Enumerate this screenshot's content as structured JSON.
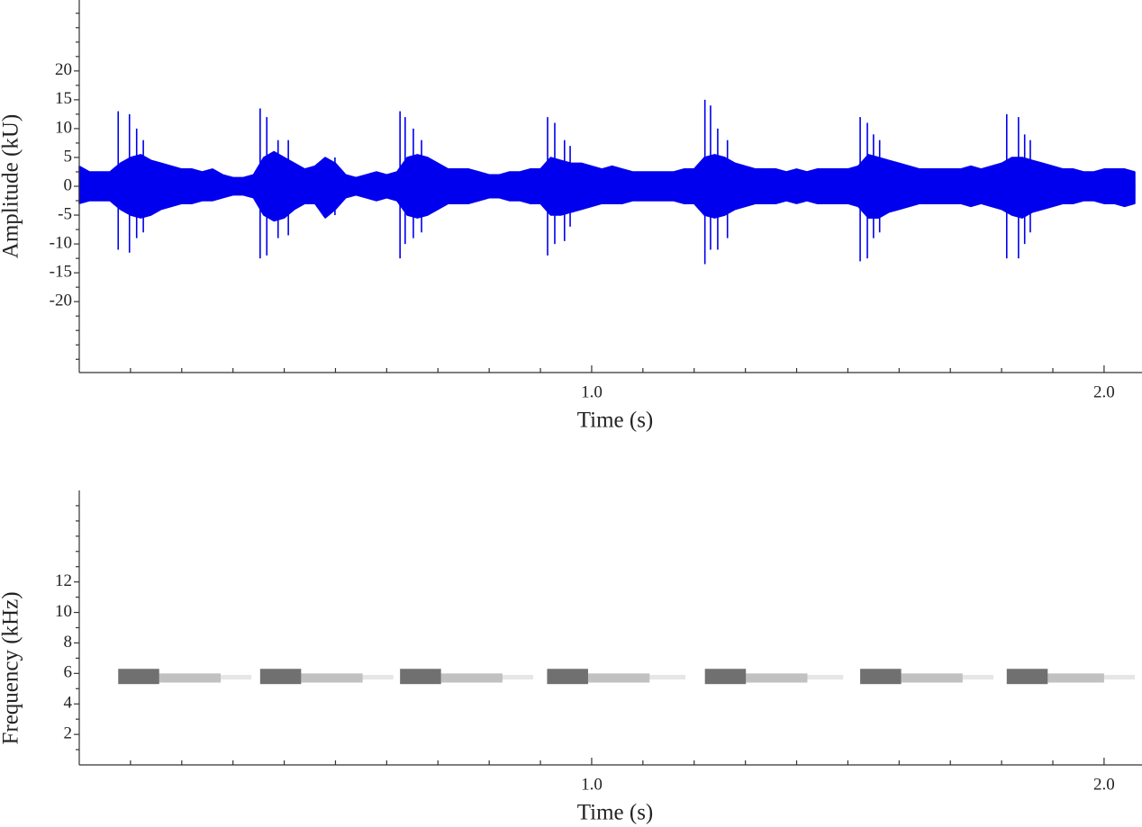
{
  "chart_data": [
    {
      "type": "waveform",
      "ylabel": "Amplitude (kU)",
      "xlabel": "Time (s)",
      "xlim": [
        0,
        2.074
      ],
      "xticks": [
        {
          "value": 1,
          "label": "1.0"
        },
        {
          "value": 2,
          "label": "2.0"
        }
      ],
      "xminor_ticks": [
        0.1,
        0.2,
        0.3,
        0.4,
        0.5,
        0.6,
        0.7,
        0.8,
        0.9,
        1.1,
        1.2,
        1.3,
        1.4,
        1.5,
        1.6,
        1.7,
        1.8,
        1.9
      ],
      "ylim": [
        -32.3,
        32.3
      ],
      "yticks": [
        -20,
        -15,
        -10,
        -5,
        0,
        5,
        10,
        15,
        20
      ],
      "yminor_ticks": [
        -30,
        -27.5,
        -25,
        -22.5,
        -17.5,
        -12.5,
        -7.5,
        -2.5,
        2.5,
        7.5,
        12.5,
        17.5,
        22.5,
        25,
        27.5,
        30
      ],
      "x": [
        0,
        0.02,
        0.04,
        0.06,
        0.08,
        0.1,
        0.12,
        0.14,
        0.16,
        0.18,
        0.2,
        0.22,
        0.24,
        0.26,
        0.28,
        0.3,
        0.32,
        0.34,
        0.36,
        0.38,
        0.4,
        0.42,
        0.44,
        0.46,
        0.48,
        0.5,
        0.52,
        0.54,
        0.56,
        0.58,
        0.6,
        0.62,
        0.64,
        0.66,
        0.68,
        0.7,
        0.72,
        0.74,
        0.76,
        0.78,
        0.8,
        0.82,
        0.84,
        0.86,
        0.88,
        0.9,
        0.92,
        0.94,
        0.96,
        0.98,
        1,
        1.02,
        1.04,
        1.06,
        1.08,
        1.1,
        1.12,
        1.14,
        1.16,
        1.18,
        1.2,
        1.22,
        1.24,
        1.26,
        1.28,
        1.3,
        1.32,
        1.34,
        1.36,
        1.38,
        1.4,
        1.42,
        1.44,
        1.46,
        1.48,
        1.5,
        1.52,
        1.54,
        1.56,
        1.58,
        1.6,
        1.62,
        1.64,
        1.66,
        1.68,
        1.7,
        1.72,
        1.74,
        1.76,
        1.78,
        1.8,
        1.82,
        1.84,
        1.86,
        1.88,
        1.9,
        1.92,
        1.94,
        1.96,
        1.98,
        2,
        2.02,
        2.04,
        2.06
      ],
      "series": [
        {
          "color": "#0000ee",
          "values": [
            3.5,
            2.5,
            2.5,
            2.5,
            4,
            5,
            5.5,
            4.5,
            4,
            3.5,
            3,
            3,
            2.5,
            3,
            2,
            1.5,
            1.5,
            2,
            5,
            6,
            5,
            4,
            3,
            3.5,
            5,
            4,
            2,
            1.5,
            2,
            2.5,
            2,
            2.5,
            5,
            5.5,
            5,
            4,
            3,
            3,
            3,
            2.5,
            2,
            2,
            2.5,
            2.5,
            3,
            3,
            5,
            4.5,
            4,
            4,
            3.5,
            3,
            3.5,
            3,
            2.5,
            2.5,
            2.5,
            2.5,
            2.5,
            3,
            3,
            5,
            5.5,
            5,
            4,
            3.5,
            3,
            3,
            3,
            2.5,
            3,
            2.5,
            3,
            3,
            3,
            3,
            3.5,
            5.5,
            5,
            4.5,
            4,
            3.5,
            3,
            3,
            3,
            3,
            3,
            3.5,
            3,
            3.5,
            4,
            5,
            5,
            4.5,
            4,
            3.5,
            3,
            3,
            2.5,
            2.5,
            3,
            3,
            3,
            2.5
          ]
        },
        {
          "color": "#0000ee",
          "values": [
            -3,
            -2.5,
            -2.5,
            -2.5,
            -4,
            -5,
            -5.5,
            -5,
            -4,
            -3.5,
            -3,
            -3,
            -2.5,
            -2.5,
            -2,
            -1.5,
            -1.5,
            -2,
            -5,
            -6,
            -5.5,
            -4,
            -3,
            -3,
            -5.5,
            -4,
            -2,
            -1.5,
            -2,
            -2.5,
            -2,
            -2.5,
            -5,
            -5.5,
            -5,
            -4,
            -3,
            -3,
            -3,
            -2.5,
            -2,
            -2,
            -2.5,
            -2.5,
            -3,
            -3,
            -5,
            -5,
            -4.5,
            -4,
            -3.5,
            -3,
            -3,
            -3,
            -2.5,
            -2.5,
            -2.5,
            -2.5,
            -2.5,
            -3,
            -3,
            -5,
            -5.5,
            -5,
            -4,
            -3.5,
            -3,
            -3,
            -3,
            -2.5,
            -3,
            -2.5,
            -3,
            -3,
            -3,
            -3,
            -3.5,
            -5.5,
            -5.5,
            -4.5,
            -4,
            -3.5,
            -3,
            -3,
            -3,
            -3,
            -3,
            -3.5,
            -3,
            -3.5,
            -4,
            -5,
            -5.5,
            -4.5,
            -4,
            -3.5,
            -3,
            -3,
            -2.5,
            -2.5,
            -3,
            -3,
            -3.5,
            -3
          ]
        }
      ],
      "spikes": {
        "x": [
          0.076,
          0.098,
          0.112,
          0.125,
          0.353,
          0.366,
          0.388,
          0.408,
          0.499,
          0.626,
          0.636,
          0.652,
          0.668,
          0.914,
          0.928,
          0.947,
          0.958,
          1.221,
          1.232,
          1.246,
          1.265,
          1.524,
          1.538,
          1.55,
          1.562,
          1.81,
          1.833,
          1.845,
          1.856
        ],
        "high": [
          13,
          12.5,
          10,
          8,
          13.5,
          12,
          8,
          8,
          5,
          13,
          12,
          10,
          8,
          12,
          11,
          8,
          7,
          15,
          14,
          10,
          8,
          12,
          11,
          9,
          8,
          12.5,
          12,
          9,
          8
        ],
        "low": [
          -11,
          -11.5,
          -9,
          -8,
          -12.5,
          -12,
          -9,
          -8.5,
          -5,
          -12.5,
          -10,
          -9,
          -8,
          -12,
          -10,
          -9.5,
          -7,
          -13.5,
          -11,
          -11,
          -9,
          -13,
          -12.5,
          -9,
          -8,
          -12.5,
          -12.5,
          -10,
          -8
        ]
      }
    },
    {
      "type": "spectrogram",
      "ylabel": "Frequency (kHz)",
      "xlabel": "Time (s)",
      "xlim": [
        0,
        2.074
      ],
      "xticks": [
        {
          "value": 1,
          "label": "1.0"
        },
        {
          "value": 2,
          "label": "2.0"
        }
      ],
      "xminor_ticks": [
        0.1,
        0.2,
        0.3,
        0.4,
        0.5,
        0.6,
        0.7,
        0.8,
        0.9,
        1.1,
        1.2,
        1.3,
        1.4,
        1.5,
        1.6,
        1.7,
        1.8,
        1.9
      ],
      "ylim": [
        0,
        18
      ],
      "yticks": [
        2,
        4,
        6,
        8,
        10,
        12
      ],
      "yminor_ticks": [
        1,
        3,
        5,
        7,
        9,
        11,
        13,
        14,
        15,
        16,
        17
      ],
      "color": "#333333",
      "cells": {
        "x0": [
          0.076,
          0.156,
          0.276,
          0.353,
          0.433,
          0.553,
          0.626,
          0.706,
          0.826,
          0.913,
          0.993,
          1.113,
          1.221,
          1.301,
          1.421,
          1.524,
          1.604,
          1.724,
          1.81,
          1.89,
          2.0
        ],
        "x1": [
          0.156,
          0.276,
          0.336,
          0.433,
          0.553,
          0.613,
          0.706,
          0.826,
          0.886,
          0.993,
          1.113,
          1.183,
          1.301,
          1.421,
          1.491,
          1.604,
          1.724,
          1.784,
          1.89,
          2.0,
          2.06
        ],
        "flow": [
          5.3,
          5.4,
          5.6,
          5.3,
          5.4,
          5.6,
          5.3,
          5.4,
          5.6,
          5.3,
          5.4,
          5.6,
          5.3,
          5.4,
          5.6,
          5.3,
          5.4,
          5.6,
          5.3,
          5.4,
          5.6
        ],
        "fhigh": [
          6.3,
          6.0,
          5.9,
          6.3,
          6.0,
          5.9,
          6.3,
          6.0,
          5.9,
          6.3,
          6.0,
          5.9,
          6.3,
          6.0,
          5.9,
          6.3,
          6.0,
          5.9,
          6.3,
          6.0,
          5.9
        ],
        "intensity": [
          0.7,
          0.3,
          0.12,
          0.7,
          0.3,
          0.12,
          0.7,
          0.3,
          0.12,
          0.7,
          0.3,
          0.12,
          0.7,
          0.3,
          0.12,
          0.7,
          0.3,
          0.12,
          0.7,
          0.3,
          0.12
        ]
      }
    }
  ]
}
